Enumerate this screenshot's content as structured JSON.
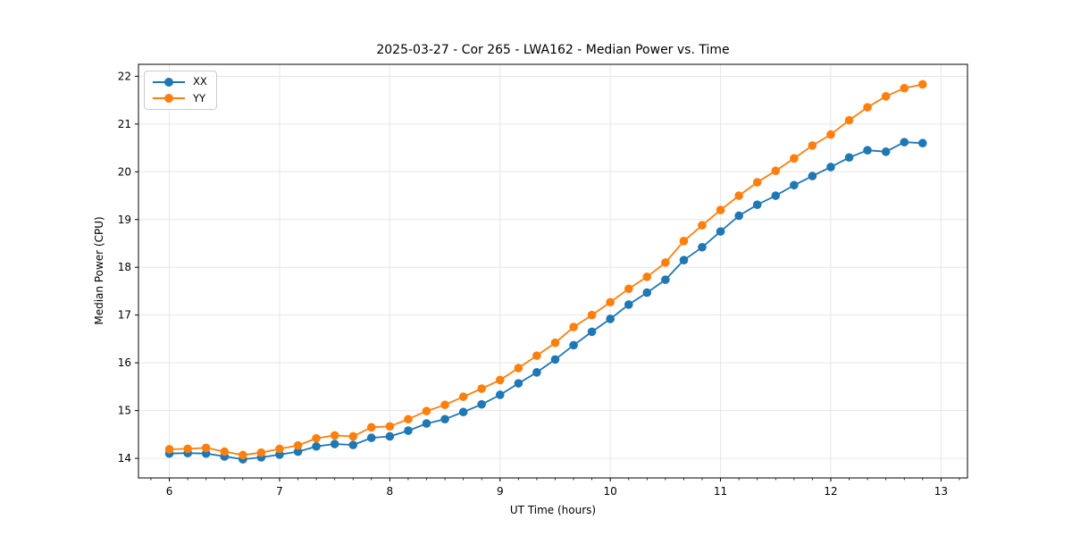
{
  "chart_data": {
    "type": "line",
    "title": "2025-03-27 - Cor 265 - LWA162 - Median Power vs. Time",
    "xlabel": "UT Time (hours)",
    "ylabel": "Median Power (CPU)",
    "xlim": [
      5.72,
      13.24
    ],
    "ylim": [
      13.59,
      22.25
    ],
    "x_ticks": [
      6,
      7,
      8,
      9,
      10,
      11,
      12,
      13
    ],
    "y_ticks": [
      14,
      15,
      16,
      17,
      18,
      19,
      20,
      21,
      22
    ],
    "x_minor_tick_step": 0.166667,
    "grid": "major",
    "grid_color": "#e6e6e6",
    "legend_position": "upper-left",
    "x": [
      6.0,
      6.167,
      6.333,
      6.5,
      6.667,
      6.833,
      7.0,
      7.167,
      7.333,
      7.5,
      7.667,
      7.833,
      8.0,
      8.167,
      8.333,
      8.5,
      8.667,
      8.833,
      9.0,
      9.167,
      9.333,
      9.5,
      9.667,
      9.833,
      10.0,
      10.167,
      10.333,
      10.5,
      10.667,
      10.833,
      11.0,
      11.167,
      11.333,
      11.5,
      11.667,
      11.833,
      12.0,
      12.167,
      12.333,
      12.5,
      12.667,
      12.833
    ],
    "series": [
      {
        "name": "XX",
        "color": "#1f77b4",
        "marker": "circle",
        "values": [
          14.1,
          14.11,
          14.1,
          14.04,
          13.98,
          14.02,
          14.08,
          14.14,
          14.25,
          14.3,
          14.28,
          14.43,
          14.46,
          14.58,
          14.73,
          14.82,
          14.97,
          15.13,
          15.33,
          15.57,
          15.8,
          16.07,
          16.37,
          16.65,
          16.92,
          17.22,
          17.47,
          17.74,
          18.15,
          18.42,
          18.75,
          19.08,
          19.31,
          19.5,
          19.72,
          19.91,
          20.1,
          20.3,
          20.45,
          20.42,
          20.62,
          20.6
        ]
      },
      {
        "name": "YY",
        "color": "#ff7f0e",
        "marker": "circle",
        "values": [
          14.19,
          14.2,
          14.22,
          14.14,
          14.07,
          14.12,
          14.2,
          14.27,
          14.42,
          14.48,
          14.46,
          14.65,
          14.67,
          14.82,
          14.99,
          15.12,
          15.29,
          15.46,
          15.64,
          15.89,
          16.15,
          16.42,
          16.75,
          17.0,
          17.27,
          17.55,
          17.8,
          18.1,
          18.55,
          18.88,
          19.2,
          19.5,
          19.78,
          20.02,
          20.28,
          20.55,
          20.78,
          21.08,
          21.35,
          21.58,
          21.75,
          21.83
        ]
      }
    ]
  }
}
